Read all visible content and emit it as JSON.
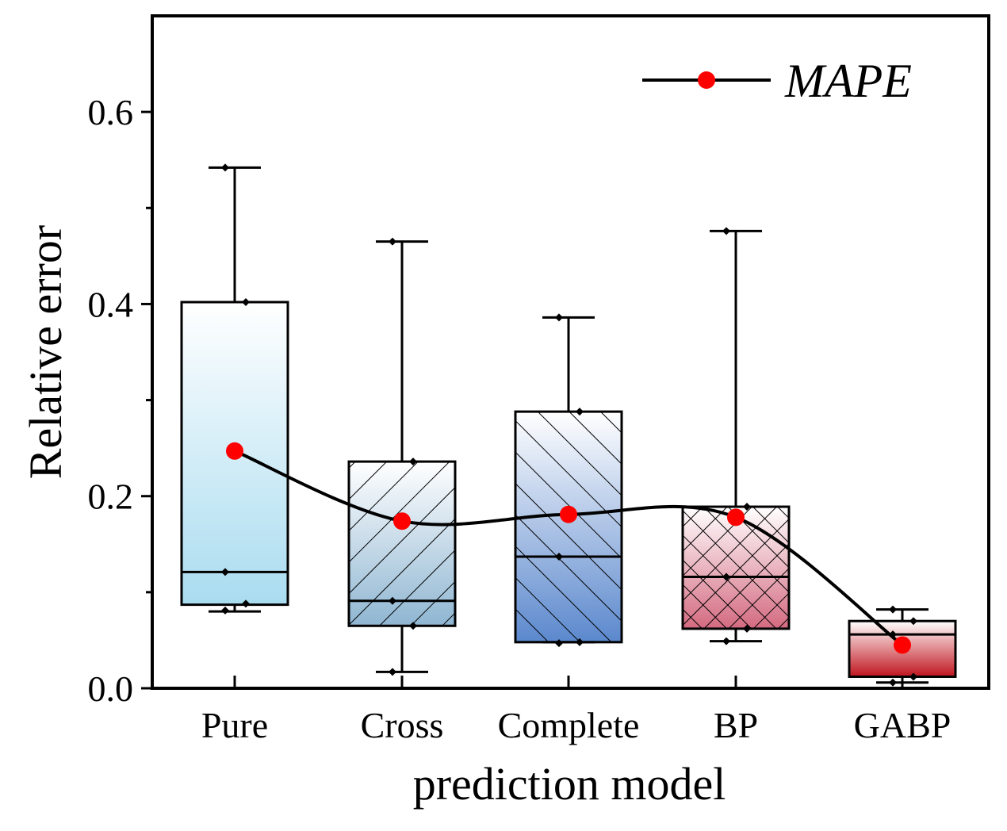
{
  "chart_data": {
    "type": "box",
    "xlabel": "prediction model",
    "ylabel": "Relative error",
    "ylim": [
      0.0,
      0.7
    ],
    "yticks": [
      "0.0",
      "0.2",
      "0.4",
      "0.6"
    ],
    "categories": [
      "Pure",
      "Cross",
      "Complete",
      "BP",
      "GABP"
    ],
    "legend": {
      "label": "MAPE",
      "position": "top-right"
    },
    "boxes": [
      {
        "category": "Pure",
        "whisker_low": 0.08,
        "q1": 0.087,
        "median": 0.121,
        "q3": 0.402,
        "whisker_high": 0.542,
        "points": [
          0.542,
          0.402,
          0.121,
          0.088,
          0.081
        ],
        "mape": 0.247,
        "fill_top": "#ffffff",
        "fill_bottom": "#a9dcf0",
        "hatch": "none"
      },
      {
        "category": "Cross",
        "whisker_low": 0.017,
        "q1": 0.065,
        "median": 0.091,
        "q3": 0.236,
        "whisker_high": 0.465,
        "points": [
          0.465,
          0.236,
          0.091,
          0.065,
          0.017
        ],
        "mape": 0.174,
        "fill_top": "#ffffff",
        "fill_bottom": "#8fb6d2",
        "hatch": "right"
      },
      {
        "category": "Complete",
        "whisker_low": 0.048,
        "q1": 0.048,
        "median": 0.137,
        "q3": 0.288,
        "whisker_high": 0.386,
        "points": [
          0.386,
          0.288,
          0.137,
          0.048,
          0.047
        ],
        "mape": 0.181,
        "fill_top": "#ffffff",
        "fill_bottom": "#5b88cd",
        "hatch": "left"
      },
      {
        "category": "BP",
        "whisker_low": 0.049,
        "q1": 0.062,
        "median": 0.116,
        "q3": 0.189,
        "whisker_high": 0.476,
        "points": [
          0.476,
          0.189,
          0.116,
          0.062,
          0.049
        ],
        "mape": 0.178,
        "fill_top": "#ffffff",
        "fill_bottom": "#d46a80",
        "hatch": "cross"
      },
      {
        "category": "GABP",
        "whisker_low": 0.006,
        "q1": 0.012,
        "median": 0.056,
        "q3": 0.07,
        "whisker_high": 0.082,
        "points": [
          0.082,
          0.07,
          0.056,
          0.012,
          0.006
        ],
        "mape": 0.045,
        "fill_top": "#ffffff",
        "fill_bottom": "#c0141e",
        "hatch": "none"
      }
    ],
    "mape_color": "#ff0000"
  }
}
